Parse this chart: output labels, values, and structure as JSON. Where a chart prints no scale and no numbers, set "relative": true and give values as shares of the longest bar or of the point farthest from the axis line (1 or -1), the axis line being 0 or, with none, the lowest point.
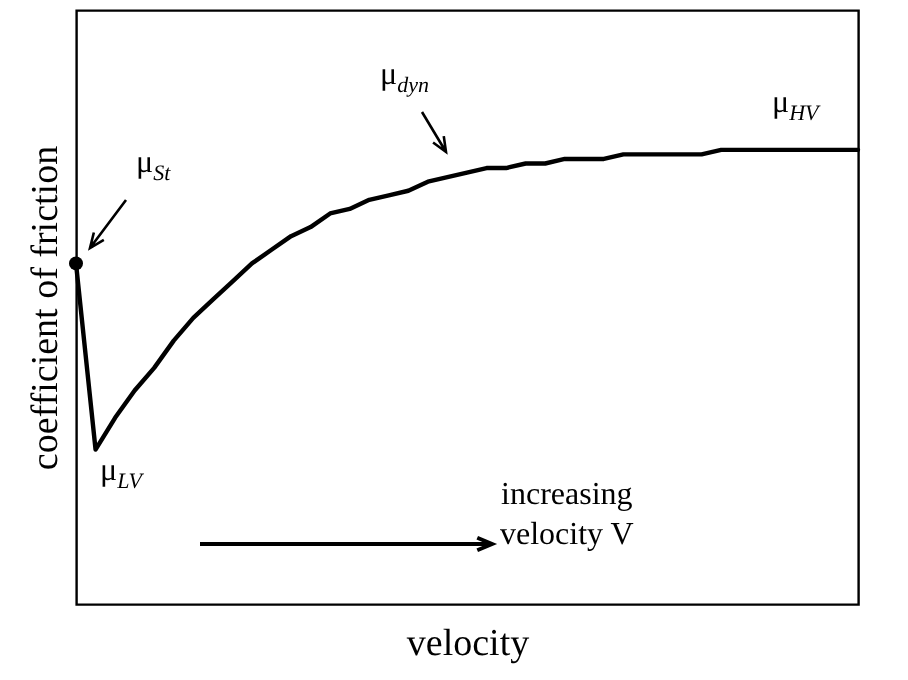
{
  "chart_data": {
    "type": "line",
    "relative": true,
    "xlabel": "velocity",
    "ylabel": "coefficient of friction",
    "categories": [
      null,
      null,
      null,
      null,
      null,
      null,
      null,
      null,
      null,
      null,
      null,
      null,
      null,
      null,
      null,
      null,
      null,
      null,
      null,
      null,
      null,
      null,
      null,
      null,
      null,
      null,
      null,
      null,
      null,
      null,
      null,
      null,
      null,
      null,
      null,
      null,
      null,
      null,
      null,
      null,
      null
    ],
    "series": [
      {
        "color": "#000000",
        "values": [
          0.75,
          0.34,
          0.41,
          0.47,
          0.52,
          0.58,
          0.63,
          0.67,
          0.71,
          0.75,
          0.78,
          0.81,
          0.83,
          0.86,
          0.87,
          0.89,
          0.9,
          0.91,
          0.93,
          0.94,
          0.95,
          0.96,
          0.96,
          0.97,
          0.97,
          0.98,
          0.98,
          0.98,
          0.99,
          0.99,
          0.99,
          0.99,
          0.99,
          1,
          1,
          1,
          1,
          1,
          1,
          1,
          1
        ]
      }
    ],
    "annotations": [
      "μ$_{St}$",
      "μ$_{LV}$",
      "μ$_{dyn}$",
      "μ$_{HV}$",
      "increasing\nvelocity V"
    ]
  }
}
